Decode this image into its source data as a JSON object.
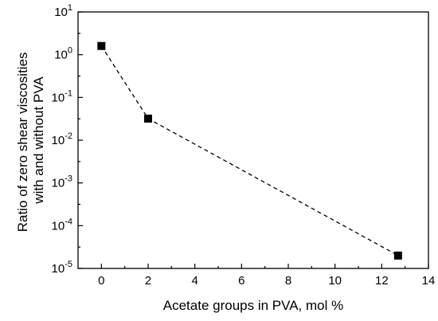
{
  "chart_data": {
    "type": "scatter",
    "xlabel": "Acetate groups in PVA, mol %",
    "ylabel_lines": [
      "Ratio of zero shear viscosities",
      "with and without PVA"
    ],
    "x_range": [
      -1,
      14
    ],
    "y_range": [
      1e-05,
      10
    ],
    "y_scale": "log",
    "x_ticks": [
      0,
      2,
      4,
      6,
      8,
      10,
      12,
      14
    ],
    "y_ticks": [
      {
        "value": 10,
        "base": "10",
        "exp": "1"
      },
      {
        "value": 1,
        "base": "10",
        "exp": "0"
      },
      {
        "value": 0.1,
        "base": "10",
        "exp": "-1"
      },
      {
        "value": 0.01,
        "base": "10",
        "exp": "-2"
      },
      {
        "value": 0.001,
        "base": "10",
        "exp": "-3"
      },
      {
        "value": 0.0001,
        "base": "10",
        "exp": "-4"
      },
      {
        "value": 1e-05,
        "base": "10",
        "exp": "-5"
      }
    ],
    "grid": false,
    "line_style": "dashed",
    "marker": "square",
    "series": [
      {
        "x": [
          0,
          2,
          12.7
        ],
        "y": [
          1.6,
          0.032,
          2e-05
        ]
      }
    ]
  }
}
